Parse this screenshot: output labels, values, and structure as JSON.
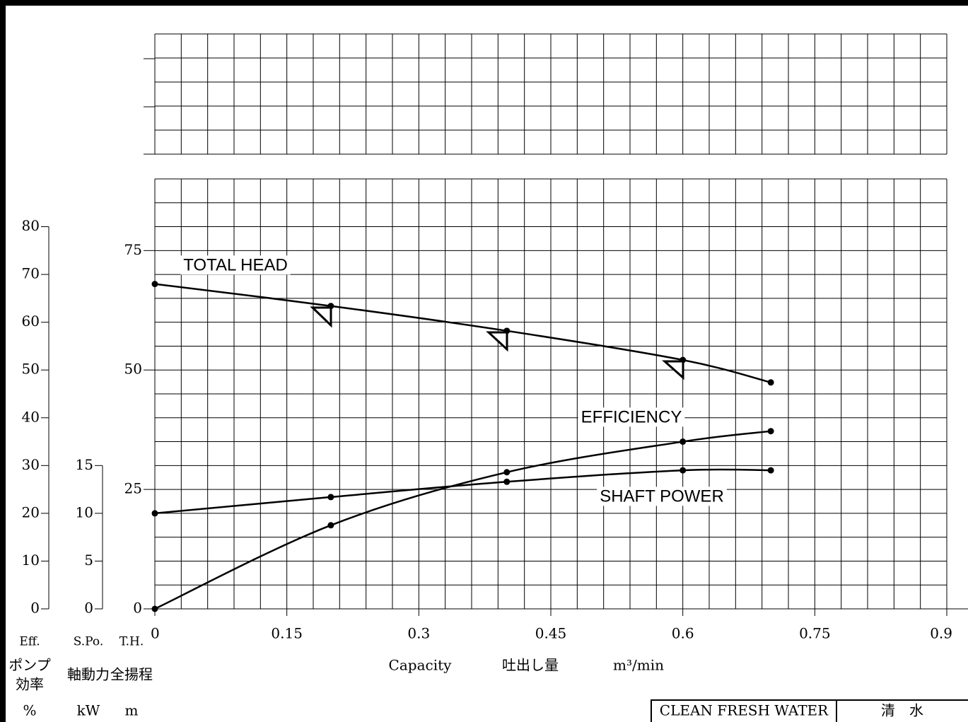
{
  "chart_data": {
    "type": "line",
    "x_label": "Capacity",
    "x_label_jp": "吐出し量",
    "x_unit": "m³/min",
    "xlim": [
      0,
      0.9
    ],
    "xticks": [
      0,
      0.15,
      0.3,
      0.45,
      0.6,
      0.75,
      0.9
    ],
    "x": [
      0,
      0.2,
      0.4,
      0.6,
      0.7
    ],
    "ylim": [
      0,
      90
    ],
    "yticks": [
      0,
      25,
      50,
      75
    ],
    "y2lim": [
      0,
      90
    ],
    "y2ticks": [
      0,
      10,
      20,
      30,
      40,
      50,
      60,
      70,
      80
    ],
    "y3lim": [
      0,
      45
    ],
    "y3ticks": [
      0,
      5,
      10,
      15
    ],
    "axis_labels": {
      "y2": {
        "abbr": "Eff.",
        "name": [
          "ポンプ",
          "効率"
        ],
        "unit": "%"
      },
      "y3": {
        "abbr": "S.Po.",
        "name": [
          "軸動力"
        ],
        "unit": "kW"
      },
      "y": {
        "abbr": "T.H.",
        "name": [
          "全揚程"
        ],
        "unit": "m"
      }
    },
    "grid": true,
    "color": "#000000",
    "series": [
      {
        "name": "TOTAL HEAD",
        "axis": "y",
        "values": [
          68,
          63.4,
          58.2,
          52.1,
          47.4
        ]
      },
      {
        "name": "EFFICIENCY",
        "axis": "y2",
        "values": [
          0,
          17.5,
          28.6,
          35,
          37.2
        ]
      },
      {
        "name": "SHAFT POWER",
        "axis": "y3",
        "values": [
          10,
          11.7,
          13.3,
          14.5,
          14.5
        ]
      }
    ]
  },
  "footer": {
    "fluid": "CLEAN FRESH WATER",
    "fluid_jp": "清　水"
  }
}
